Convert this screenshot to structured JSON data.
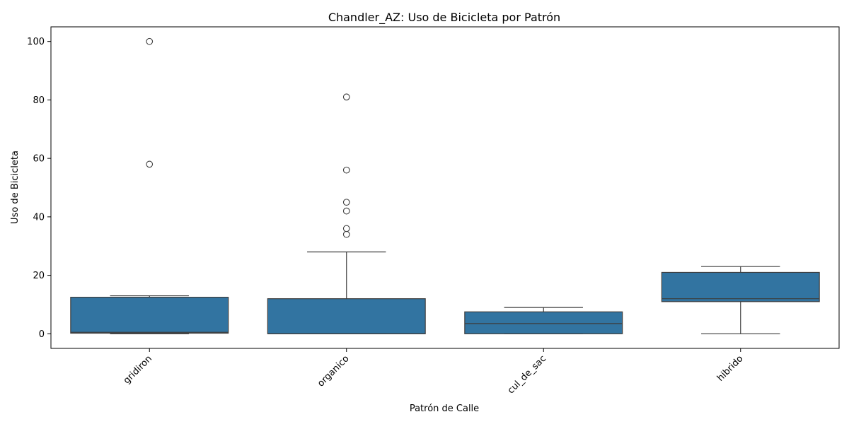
{
  "chart_data": {
    "type": "box",
    "title": "Chandler_AZ: Uso de Bicicleta por Patrón",
    "xlabel": "Patrón de Calle",
    "ylabel": "Uso de Bicicleta",
    "ylim": [
      -5,
      105
    ],
    "yticks": [
      0,
      20,
      40,
      60,
      80,
      100
    ],
    "grid": false,
    "box_color": "#3274a1",
    "categories": [
      "gridiron",
      "organico",
      "cul_de_sac",
      "hibrido"
    ],
    "boxes": [
      {
        "category": "gridiron",
        "whisker_low": 0,
        "q1": 0.2,
        "median": 0.5,
        "q3": 12.5,
        "whisker_high": 13,
        "outliers": [
          58,
          100
        ]
      },
      {
        "category": "organico",
        "whisker_low": 0,
        "q1": 0,
        "median": 0,
        "q3": 12,
        "whisker_high": 28,
        "outliers": [
          34,
          36,
          42,
          45,
          56,
          81
        ]
      },
      {
        "category": "cul_de_sac",
        "whisker_low": 0,
        "q1": 0,
        "median": 3.5,
        "q3": 7.5,
        "whisker_high": 9,
        "outliers": []
      },
      {
        "category": "hibrido",
        "whisker_low": 0,
        "q1": 11,
        "median": 12,
        "q3": 21,
        "whisker_high": 23,
        "outliers": []
      }
    ]
  }
}
